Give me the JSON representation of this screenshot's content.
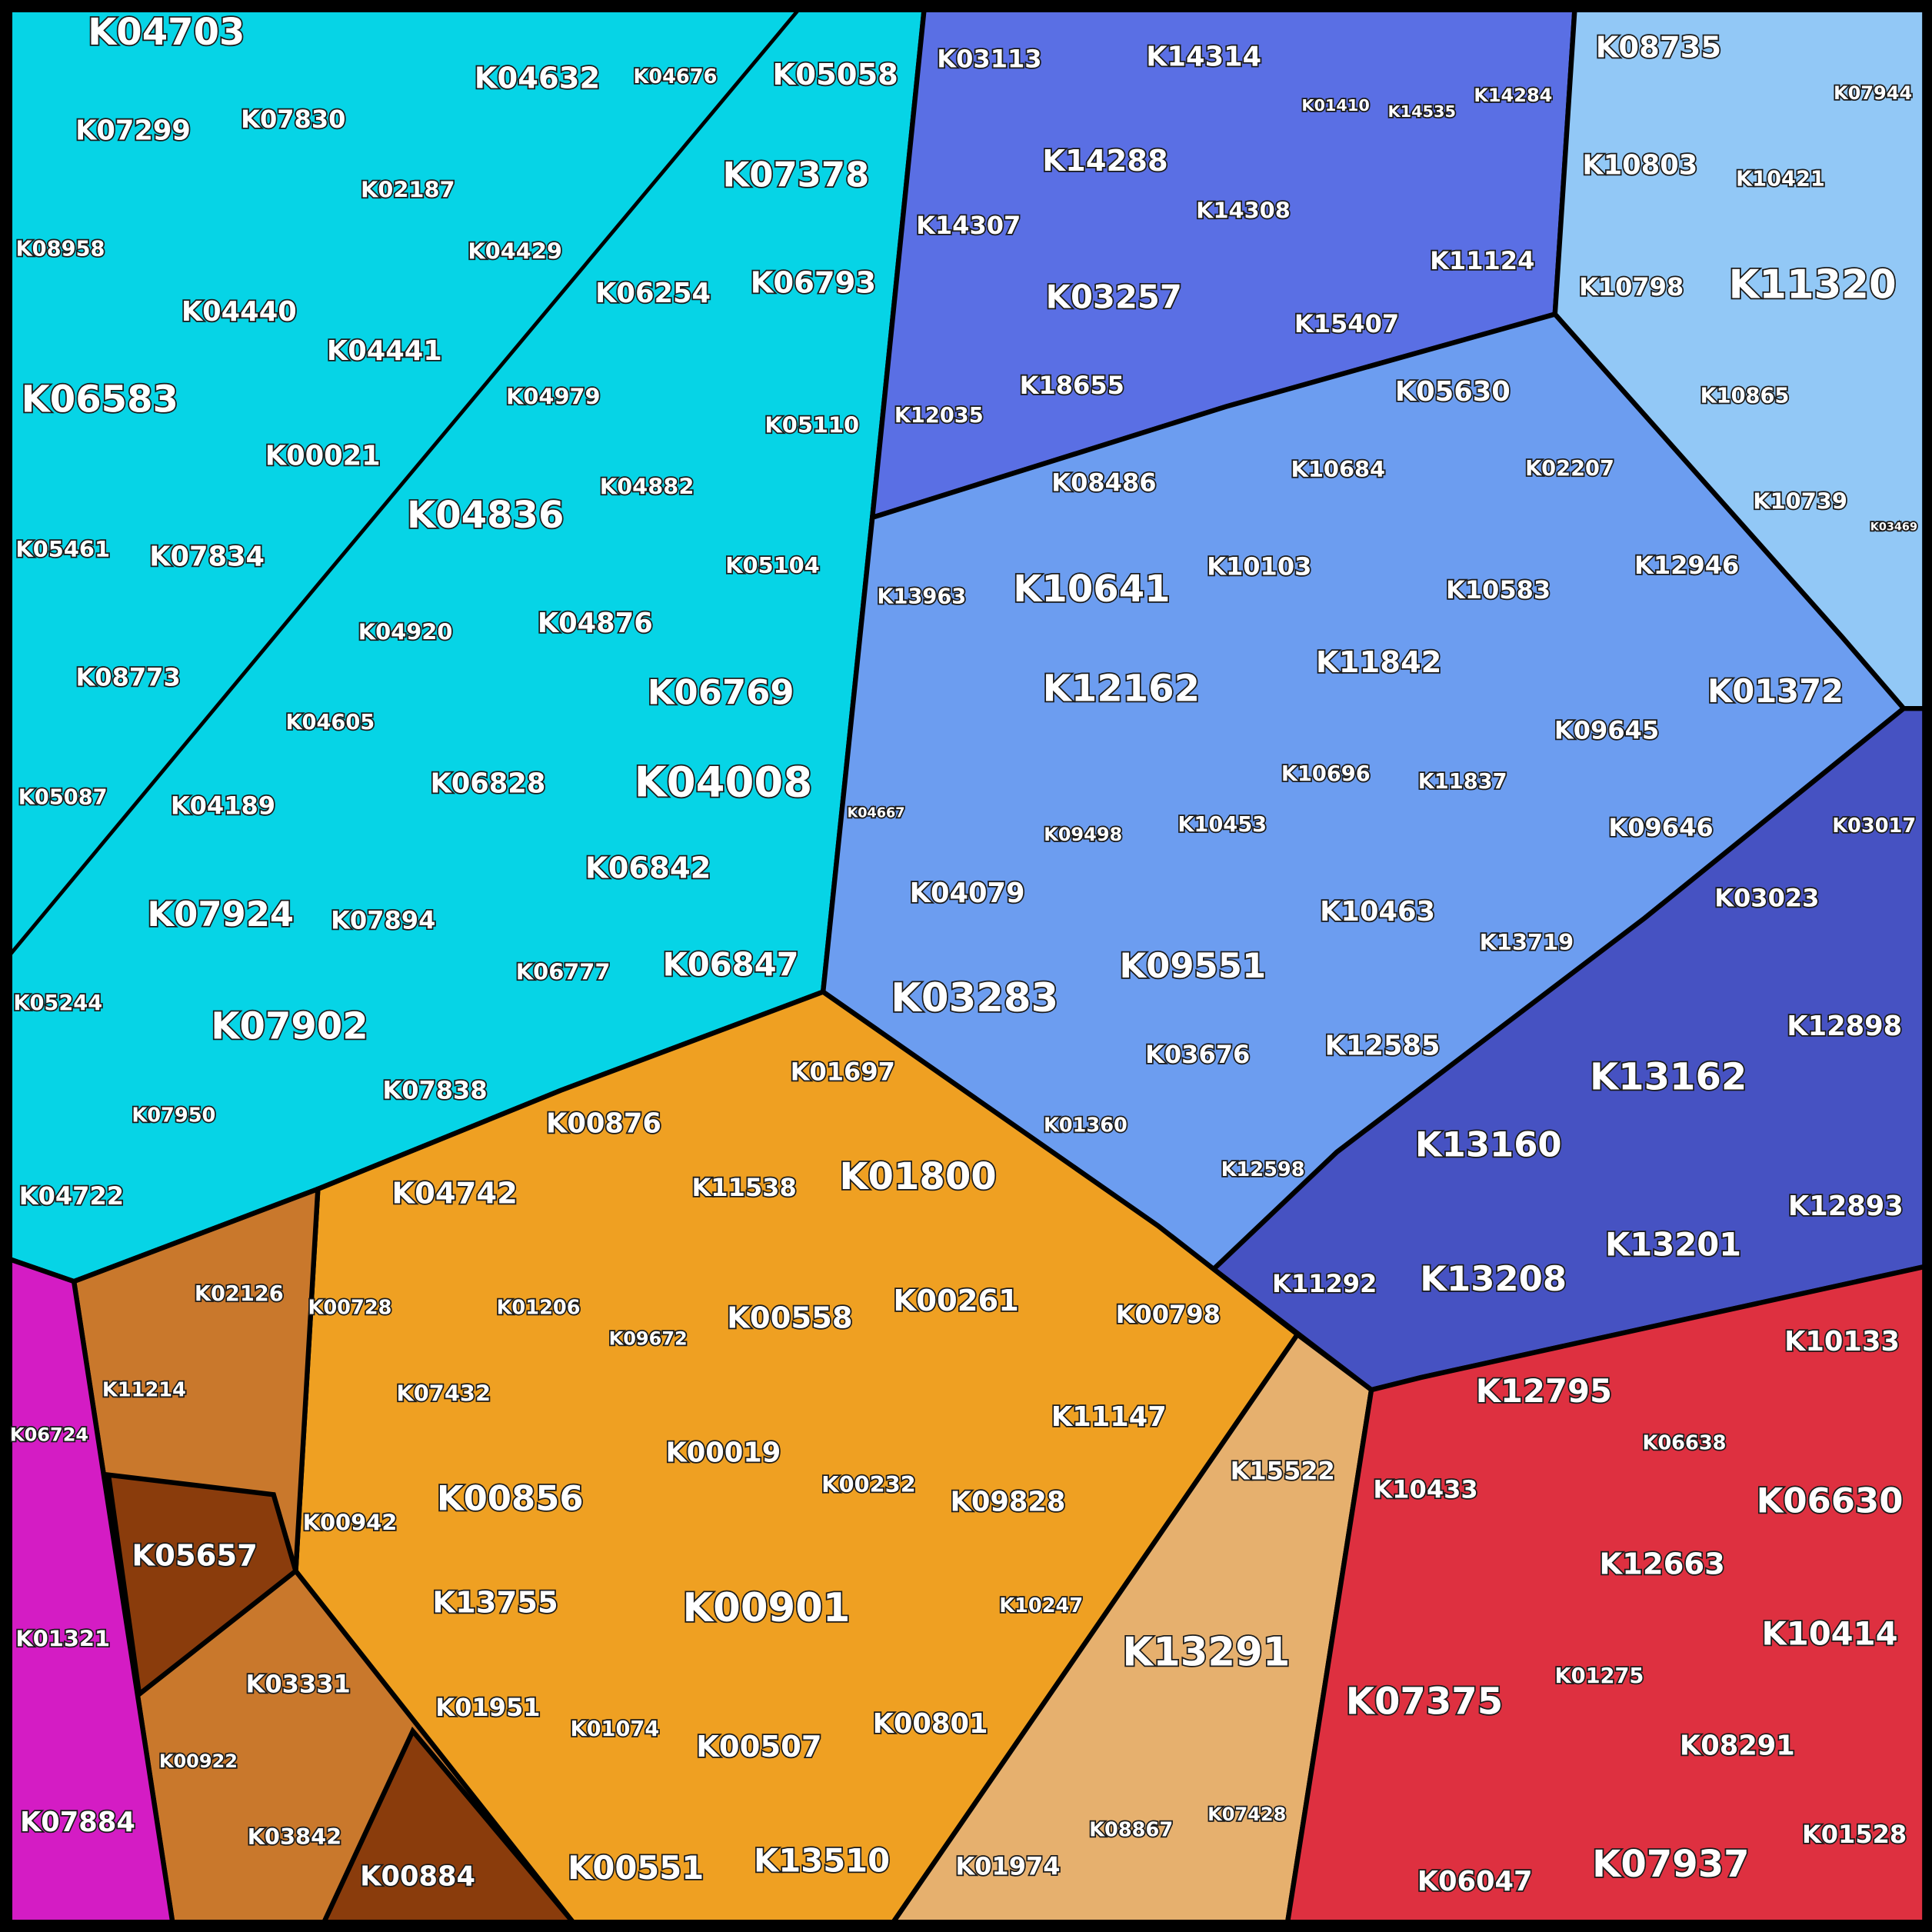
{
  "groups": {
    "cyan": "#06d4e6",
    "purple": "#5a6fe4",
    "sky": "#92c8f6",
    "blue": "#6c9df0",
    "indigo": "#4652c2",
    "orange": "#efa022",
    "brown": "#c9782c",
    "darkbrown": "#8a3c0c",
    "tan": "#e6b06e",
    "red": "#de3040",
    "magenta": "#d41cc4"
  },
  "cells": [
    "K04703",
    "K04632",
    "K04676",
    "K05058",
    "K07299",
    "K07830",
    "K02187",
    "K04429",
    "K08958",
    "K07378",
    "K06793",
    "K06254",
    "K04440",
    "K04441",
    "K06583",
    "K04979",
    "K05110",
    "K00021",
    "K04882",
    "K04836",
    "K05461",
    "K07834",
    "K05104",
    "K04876",
    "K04920",
    "K06769",
    "K08773",
    "K04605",
    "K04008",
    "K06828",
    "K05087",
    "K04189",
    "K06842",
    "K07924",
    "K07894",
    "K06777",
    "K06847",
    "K05244",
    "K07902",
    "K07838",
    "K07950",
    "K04722",
    "K03113",
    "K14314",
    "K01410",
    "K14535",
    "K14284",
    "K14288",
    "K14308",
    "K14307",
    "K11124",
    "K03257",
    "K15407",
    "K18655",
    "K12035",
    "K08735",
    "K07944",
    "K10803",
    "K10421",
    "K10798",
    "K11320",
    "K10865",
    "K10739",
    "K03469",
    "K05630",
    "K10684",
    "K02207",
    "K08486",
    "K13963",
    "K10641",
    "K10103",
    "K10583",
    "K12946",
    "K11842",
    "K12162",
    "K01372",
    "K09645",
    "K04667",
    "K10696",
    "K11837",
    "K09498",
    "K10453",
    "K09646",
    "K04079",
    "K10463",
    "K13719",
    "K09551",
    "K03283",
    "K03676",
    "K12585",
    "K01360",
    "K12598",
    "K03017",
    "K03023",
    "K12898",
    "K13162",
    "K13160",
    "K12893",
    "K13201",
    "K13208",
    "K11292",
    "K10133",
    "K12795",
    "K06638",
    "K10433",
    "K06630",
    "K12663",
    "K10414",
    "K07375",
    "K01275",
    "K08291",
    "K01528",
    "K07937",
    "K06047",
    "K15522",
    "K13291",
    "K01974",
    "K08867",
    "K07428",
    "K01697",
    "K00876",
    "K01800",
    "K11538",
    "K04742",
    "K00558",
    "K00261",
    "K00798",
    "K00728",
    "K01206",
    "K09672",
    "K11214",
    "K07432",
    "K11147",
    "K00019",
    "K00232",
    "K09828",
    "K06724",
    "K00856",
    "K00942",
    "K05657",
    "K00901",
    "K13755",
    "K10247",
    "K01321",
    "K03331",
    "K01951",
    "K00801",
    "K01074",
    "K00507",
    "K00922",
    "K07884",
    "K03842",
    "K13510",
    "K00551",
    "K00884",
    "K02126"
  ]
}
